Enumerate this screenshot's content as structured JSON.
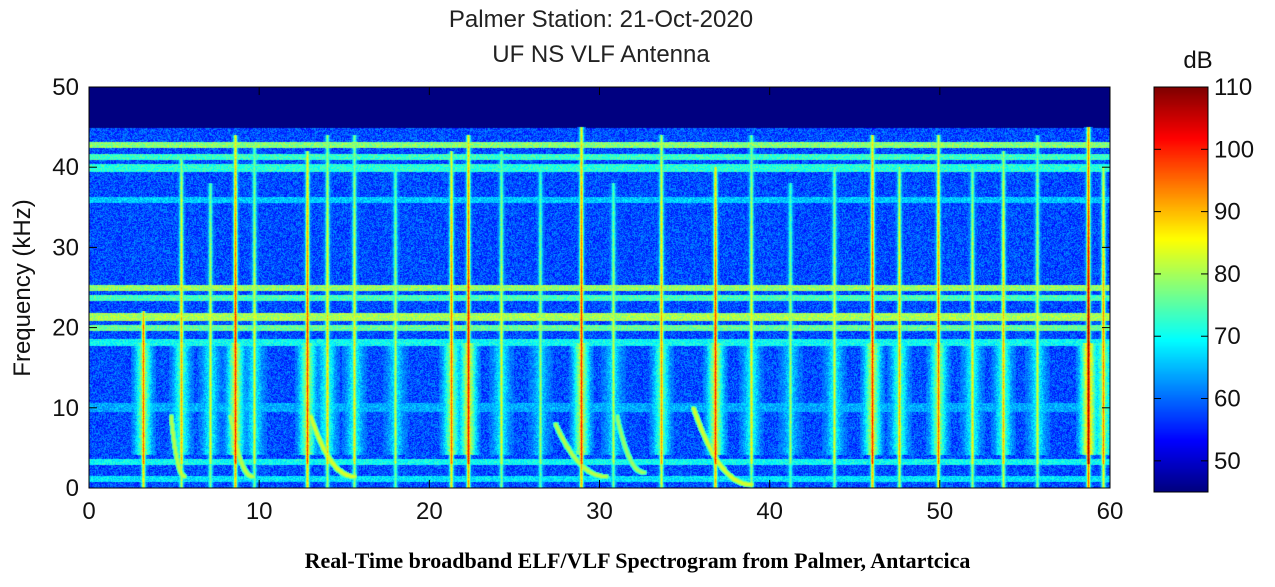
{
  "caption": "Real-Time broadband ELF/VLF Spectrogram from Palmer, Antartcica",
  "chart_data": {
    "type": "heatmap",
    "title": "Palmer Station: 21-Oct-2020",
    "subtitle": "UF NS VLF Antenna",
    "xlabel": "",
    "ylabel": "Frequency (kHz)",
    "xlim": [
      0,
      60
    ],
    "ylim": [
      0,
      50
    ],
    "xticks": [
      0,
      10,
      20,
      30,
      40,
      50,
      60
    ],
    "yticks": [
      0,
      10,
      20,
      30,
      40,
      50
    ],
    "colorbar": {
      "label": "dB",
      "range": [
        45,
        110
      ],
      "ticks": [
        50,
        60,
        70,
        80,
        90,
        100,
        110
      ],
      "colormap": "jet"
    },
    "cutoff_khz": 45,
    "background_db": 58,
    "noise_floor_db_above_cutoff": 45,
    "bands": [
      {
        "f": [
          0.8,
          1.4
        ],
        "db": 68
      },
      {
        "f": [
          2.9,
          3.5
        ],
        "db": 70
      },
      {
        "f": [
          9.5,
          10.5
        ],
        "db": 64
      },
      {
        "f": [
          17.8,
          18.5
        ],
        "db": 70
      },
      {
        "f": [
          19.6,
          20.2
        ],
        "db": 76
      },
      {
        "f": [
          20.9,
          21.8
        ],
        "db": 80
      },
      {
        "f": [
          23.4,
          24.0
        ],
        "db": 74
      },
      {
        "f": [
          24.6,
          25.2
        ],
        "db": 79
      },
      {
        "f": [
          35.6,
          36.2
        ],
        "db": 66
      },
      {
        "f": [
          39.5,
          40.3
        ],
        "db": 72
      },
      {
        "f": [
          40.9,
          41.6
        ],
        "db": 73
      },
      {
        "f": [
          42.4,
          43.1
        ],
        "db": 78
      }
    ],
    "sferics": [
      {
        "t": 3.2,
        "db": 96,
        "fmax": 22
      },
      {
        "t": 5.4,
        "db": 90,
        "fmax": 41
      },
      {
        "t": 7.1,
        "db": 84,
        "fmax": 38
      },
      {
        "t": 8.6,
        "db": 100,
        "fmax": 44
      },
      {
        "t": 9.7,
        "db": 84,
        "fmax": 43
      },
      {
        "t": 12.8,
        "db": 98,
        "fmax": 42
      },
      {
        "t": 14.0,
        "db": 88,
        "fmax": 44
      },
      {
        "t": 15.6,
        "db": 86,
        "fmax": 44
      },
      {
        "t": 18.0,
        "db": 82,
        "fmax": 40
      },
      {
        "t": 21.3,
        "db": 96,
        "fmax": 42
      },
      {
        "t": 22.3,
        "db": 102,
        "fmax": 44
      },
      {
        "t": 24.2,
        "db": 84,
        "fmax": 42
      },
      {
        "t": 26.5,
        "db": 80,
        "fmax": 40
      },
      {
        "t": 28.9,
        "db": 100,
        "fmax": 45
      },
      {
        "t": 30.8,
        "db": 82,
        "fmax": 38
      },
      {
        "t": 33.6,
        "db": 92,
        "fmax": 44
      },
      {
        "t": 36.8,
        "db": 100,
        "fmax": 40
      },
      {
        "t": 38.9,
        "db": 86,
        "fmax": 44
      },
      {
        "t": 41.2,
        "db": 80,
        "fmax": 38
      },
      {
        "t": 43.8,
        "db": 84,
        "fmax": 40
      },
      {
        "t": 46.0,
        "db": 100,
        "fmax": 44
      },
      {
        "t": 47.6,
        "db": 90,
        "fmax": 40
      },
      {
        "t": 49.9,
        "db": 96,
        "fmax": 44
      },
      {
        "t": 51.9,
        "db": 86,
        "fmax": 40
      },
      {
        "t": 53.7,
        "db": 90,
        "fmax": 42
      },
      {
        "t": 55.7,
        "db": 84,
        "fmax": 44
      },
      {
        "t": 58.7,
        "db": 108,
        "fmax": 45
      },
      {
        "t": 59.6,
        "db": 94,
        "fmax": 40
      }
    ],
    "whistlers": [
      {
        "t0": 4.8,
        "t1": 5.6,
        "f0": 9,
        "f1": 1.5,
        "db": 80
      },
      {
        "t0": 8.3,
        "t1": 9.6,
        "f0": 9,
        "f1": 1.5,
        "db": 80
      },
      {
        "t0": 13.0,
        "t1": 15.6,
        "f0": 9,
        "f1": 1.5,
        "db": 82
      },
      {
        "t0": 27.4,
        "t1": 30.4,
        "f0": 8,
        "f1": 1.5,
        "db": 80
      },
      {
        "t0": 31.0,
        "t1": 32.6,
        "f0": 9,
        "f1": 2.0,
        "db": 78
      },
      {
        "t0": 35.5,
        "t1": 38.9,
        "f0": 10,
        "f1": 0.5,
        "db": 82
      }
    ]
  }
}
